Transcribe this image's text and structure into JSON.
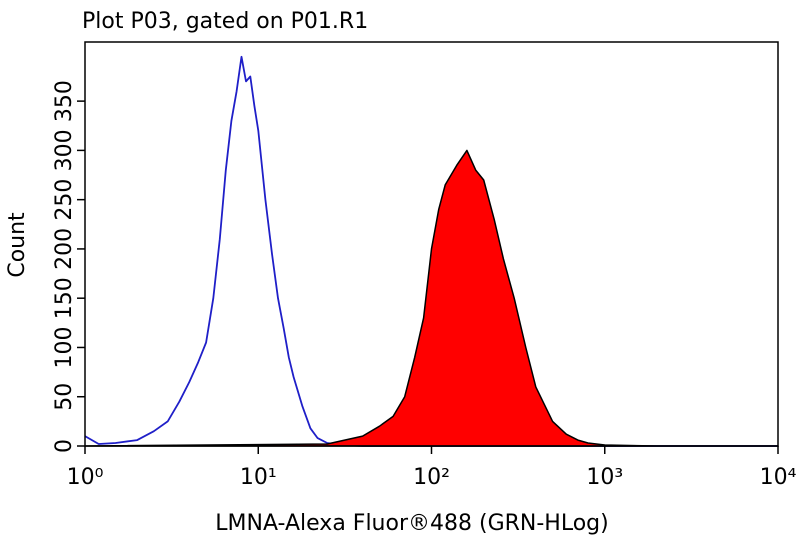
{
  "chart_data": {
    "type": "histogram-overlay",
    "title": "Plot P03, gated on P01.R1",
    "x_label": "LMNA-Alexa Fluor®488 (GRN-HLog)",
    "y_label": "Count",
    "log_x": true,
    "xlim": [
      1,
      10000
    ],
    "xticks": [
      {
        "value": 1,
        "label": "10⁰"
      },
      {
        "value": 10,
        "label": "10¹"
      },
      {
        "value": 100,
        "label": "10²"
      },
      {
        "value": 1000,
        "label": "10³"
      },
      {
        "value": 10000,
        "label": "10⁴"
      }
    ],
    "ylim": [
      0,
      410
    ],
    "yticks": [
      0,
      50,
      100,
      150,
      200,
      250,
      300,
      350
    ],
    "series": [
      {
        "color": "#1f1fc8",
        "fill": false,
        "x": [
          1,
          1.2,
          1.5,
          2,
          2.5,
          3,
          3.5,
          4,
          4.5,
          5,
          5.5,
          6,
          6.5,
          7,
          7.5,
          8,
          8.5,
          9,
          9.5,
          10,
          11,
          12,
          13,
          14,
          15,
          16,
          18,
          20,
          22,
          25,
          30,
          40,
          100,
          1000,
          10000
        ],
        "values": [
          10,
          2,
          3,
          6,
          15,
          25,
          45,
          65,
          85,
          105,
          150,
          210,
          280,
          330,
          360,
          395,
          370,
          375,
          345,
          320,
          250,
          195,
          150,
          120,
          90,
          70,
          40,
          18,
          8,
          3,
          1,
          0,
          0,
          0,
          0
        ]
      },
      {
        "color": "#ff0000",
        "fill": true,
        "x": [
          1,
          25,
          40,
          50,
          60,
          70,
          80,
          90,
          100,
          110,
          120,
          140,
          160,
          180,
          200,
          230,
          260,
          300,
          350,
          400,
          500,
          600,
          700,
          800,
          1000,
          2000,
          10000
        ],
        "values": [
          0,
          2,
          10,
          20,
          30,
          50,
          90,
          130,
          200,
          240,
          265,
          285,
          300,
          280,
          270,
          230,
          190,
          150,
          100,
          60,
          25,
          12,
          6,
          3,
          1,
          0,
          0
        ]
      }
    ]
  }
}
